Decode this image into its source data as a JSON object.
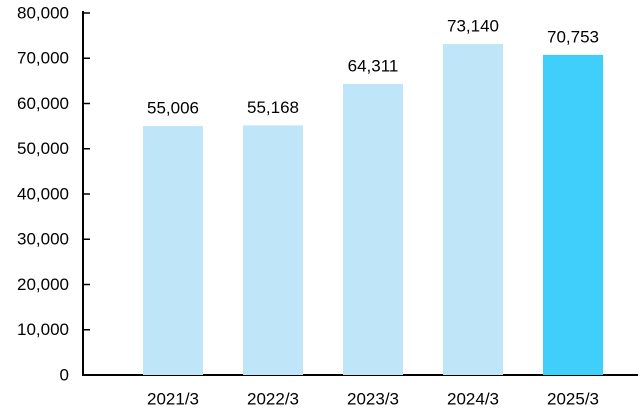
{
  "chart_data": {
    "type": "bar",
    "categories": [
      "2021/3",
      "2022/3",
      "2023/3",
      "2024/3",
      "2025/3"
    ],
    "values": [
      55006,
      55168,
      64311,
      73140,
      70753
    ],
    "value_labels": [
      "55,006",
      "55,168",
      "64,311",
      "73,140",
      "70,753"
    ],
    "colors": [
      "#bfe6f8",
      "#bfe6f8",
      "#bfe6f8",
      "#bfe6f8",
      "#3fcffa"
    ],
    "ylim": [
      0,
      80000
    ],
    "yticks": [
      0,
      {
        "value": 10000,
        "label": "10,000"
      },
      {
        "value": 20000,
        "label": "20,000"
      },
      {
        "value": 30000,
        "label": "30,000"
      },
      {
        "value": 40000,
        "label": "40,000"
      },
      {
        "value": 50000,
        "label": "50,000"
      },
      {
        "value": 60000,
        "label": "60,000"
      },
      {
        "value": 70000,
        "label": "70,000"
      },
      {
        "value": 80000,
        "label": "80,000"
      }
    ]
  }
}
